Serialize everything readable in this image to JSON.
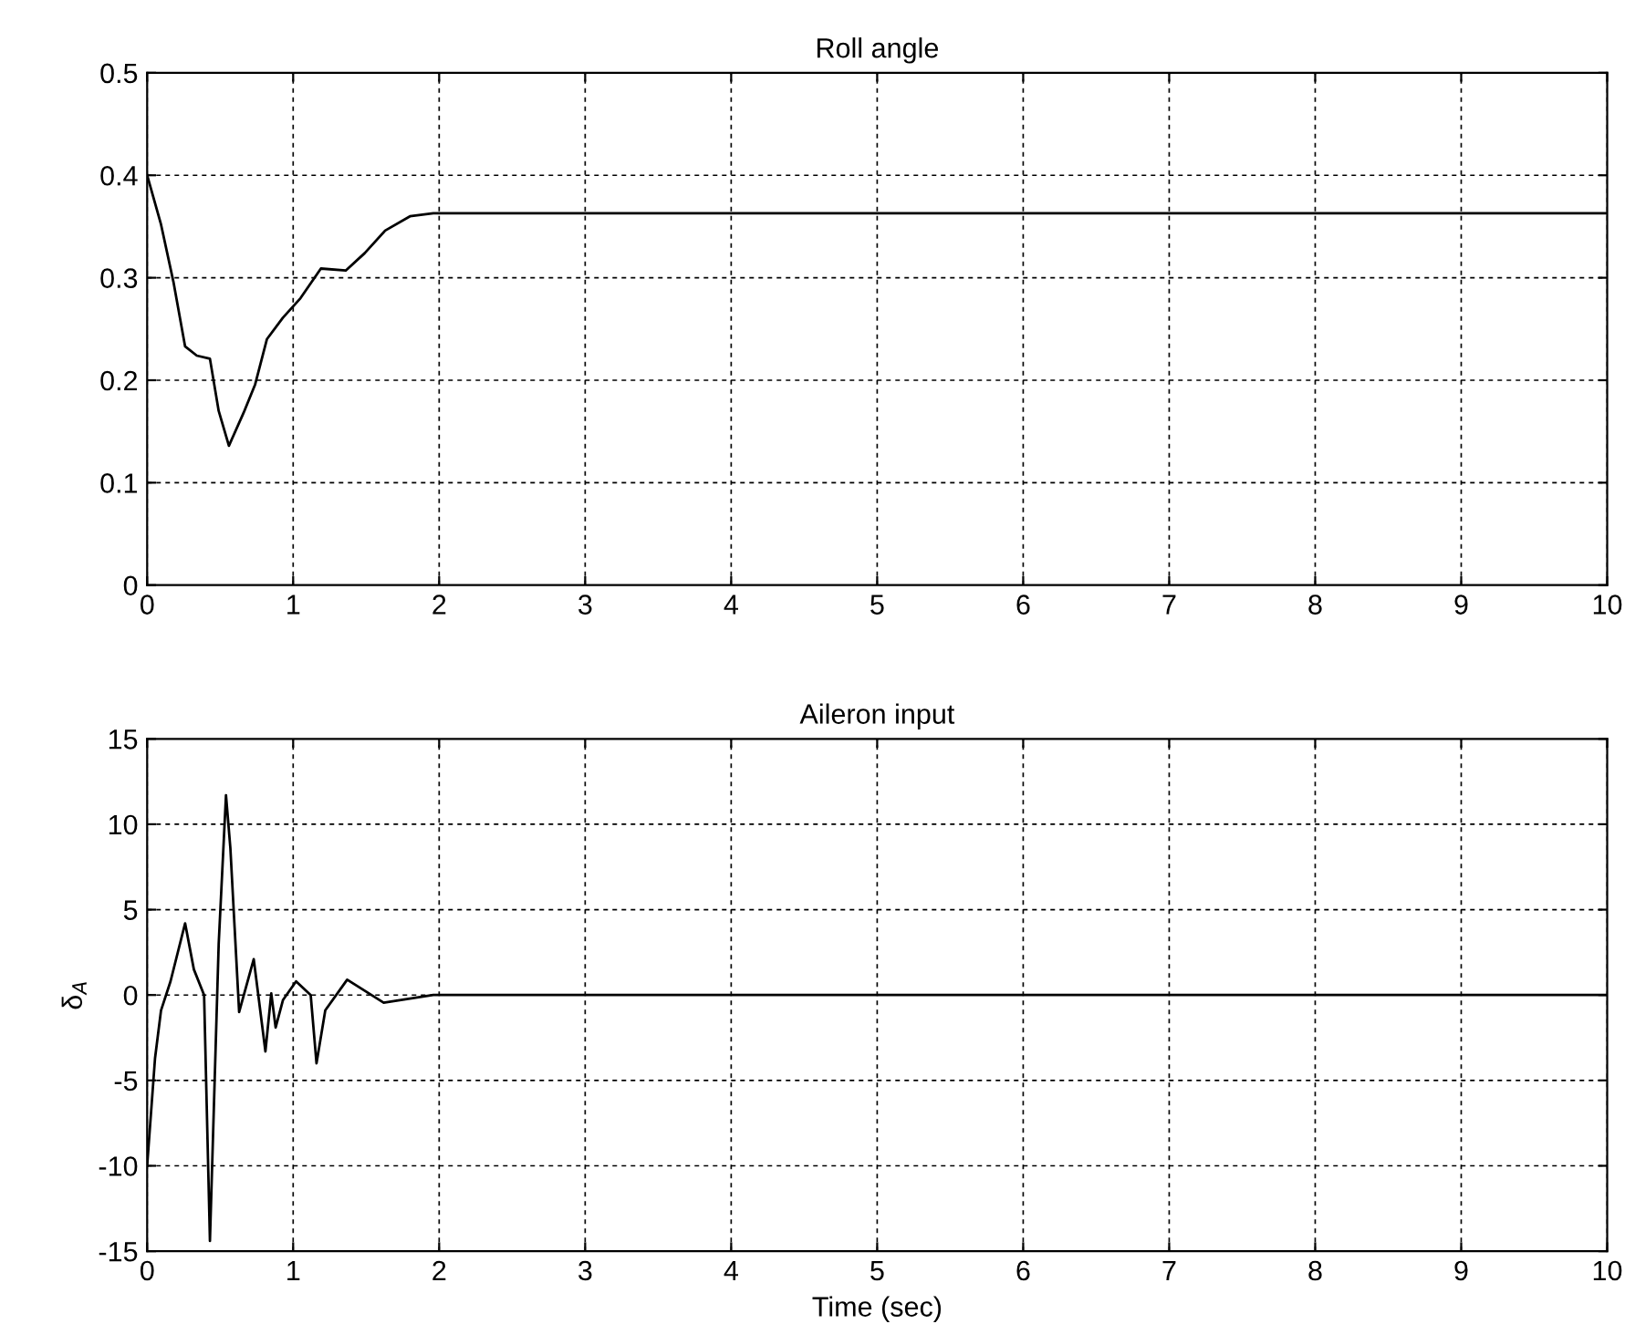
{
  "chart_data": [
    {
      "type": "line",
      "title": "Roll angle",
      "x": [
        0,
        0.095,
        0.18,
        0.26,
        0.34,
        0.43,
        0.49,
        0.56,
        0.66,
        0.74,
        0.82,
        0.93,
        1.05,
        1.19,
        1.36,
        1.49,
        1.63,
        1.8,
        1.96,
        10
      ],
      "series": [
        {
          "color": "#000000",
          "values": [
            0.4,
            0.352,
            0.296,
            0.233,
            0.224,
            0.221,
            0.17,
            0.136,
            0.168,
            0.196,
            0.24,
            0.261,
            0.28,
            0.309,
            0.307,
            0.324,
            0.346,
            0.36,
            0.363,
            0.363
          ]
        }
      ],
      "xlim": [
        0,
        10
      ],
      "xticks": [
        0,
        1,
        2,
        3,
        4,
        5,
        6,
        7,
        8,
        9,
        10
      ],
      "ylim": [
        0,
        0.5
      ],
      "yticks": [
        0,
        0.1,
        0.2,
        0.3,
        0.4,
        0.5
      ],
      "grid": true,
      "line_style": "solid"
    },
    {
      "type": "line",
      "title": "Aileron input",
      "xlabel": "Time (sec)",
      "ylabel": "δ$_{A}$",
      "x": [
        0,
        0.054,
        0.095,
        0.16,
        0.26,
        0.32,
        0.39,
        0.43,
        0.49,
        0.54,
        0.57,
        0.63,
        0.73,
        0.81,
        0.85,
        0.88,
        0.93,
        1.02,
        1.12,
        1.16,
        1.22,
        1.37,
        1.62,
        1.96,
        10
      ],
      "series": [
        {
          "color": "#000000",
          "values": [
            -10,
            -3.7,
            -0.9,
            0.8,
            4.2,
            1.5,
            0,
            -14.4,
            3.0,
            11.7,
            8.6,
            -1.0,
            2.1,
            -3.3,
            0.1,
            -1.9,
            -0.3,
            0.8,
            0,
            -4.0,
            -0.9,
            0.9,
            -0.45,
            0,
            0
          ]
        }
      ],
      "xlim": [
        0,
        10
      ],
      "xticks": [
        0,
        1,
        2,
        3,
        4,
        5,
        6,
        7,
        8,
        9,
        10
      ],
      "ylim": [
        -15,
        15
      ],
      "yticks": [
        -15,
        -10,
        -5,
        0,
        5,
        10,
        15
      ],
      "grid": true,
      "line_style": "solid"
    }
  ]
}
